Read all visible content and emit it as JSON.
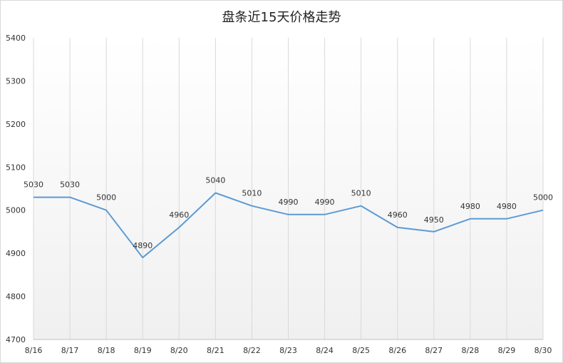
{
  "chart_data": {
    "type": "line",
    "title": "盘条近15天价格走势",
    "xlabel": "",
    "ylabel": "",
    "categories": [
      "8/16",
      "8/17",
      "8/18",
      "8/19",
      "8/20",
      "8/21",
      "8/22",
      "8/23",
      "8/24",
      "8/25",
      "8/26",
      "8/27",
      "8/28",
      "8/29",
      "8/30"
    ],
    "series": [
      {
        "values": [
          5030,
          5030,
          5000,
          4890,
          4960,
          5040,
          5010,
          4990,
          4990,
          5010,
          4960,
          4950,
          4980,
          4980,
          5000
        ],
        "color": "#5b9bd5"
      }
    ],
    "ylim": [
      4700,
      5400
    ],
    "yticks": [
      4700,
      4800,
      4900,
      5000,
      5100,
      5200,
      5300,
      5400
    ],
    "grid": "vertical",
    "legend": "none",
    "colors": {
      "line": "#5b9bd5",
      "grid": "#d9d9d9",
      "axis": "#bfbfbf",
      "plot_gradient_top": "#ffffff",
      "plot_gradient_bottom": "#f0f0f0"
    }
  }
}
